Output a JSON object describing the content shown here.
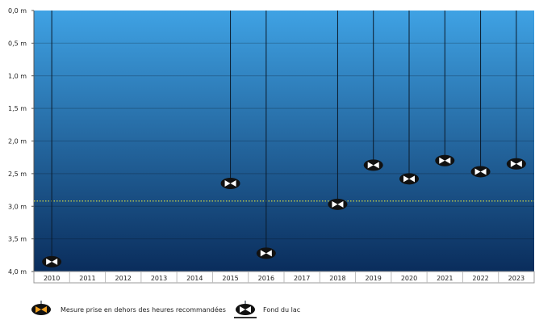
{
  "chart_data": {
    "type": "scatter",
    "title": "",
    "xlabel": "",
    "ylabel": "",
    "y_unit": "m",
    "y_axis_inverted": true,
    "ylim": [
      0,
      4
    ],
    "yticks": [
      0.0,
      0.5,
      1.0,
      1.5,
      2.0,
      2.5,
      3.0,
      3.5,
      4.0
    ],
    "ytick_labels": [
      "0,0 m",
      "0,5 m",
      "1,0 m",
      "1,5 m",
      "2,0 m",
      "2,5 m",
      "3,0 m",
      "3,5 m",
      "4,0 m"
    ],
    "categories": [
      "2010",
      "2011",
      "2012",
      "2013",
      "2014",
      "2015",
      "2016",
      "2017",
      "2018",
      "2019",
      "2020",
      "2021",
      "2022",
      "2023"
    ],
    "series": [
      {
        "name": "",
        "values": [
          3.85,
          null,
          null,
          null,
          null,
          2.65,
          3.72,
          null,
          2.97,
          2.37,
          2.58,
          2.3,
          2.47,
          2.35
        ]
      }
    ],
    "reference_line": {
      "value": 2.92,
      "color": "#e8e840",
      "style": "dotted"
    },
    "grid": true,
    "legend_position": "bottom-left",
    "legend": [
      {
        "label": "Mesure prise en dehors des heures recommandées",
        "marker": "orange-disk-icon"
      },
      {
        "label": "Fond du lac",
        "marker": "lake-bottom-icon"
      }
    ]
  },
  "colors": {
    "water_top": "#3fa2e4",
    "water_bottom": "#0a2d5c",
    "disk_dark": "#111111",
    "disk_light": "#ffffff",
    "disk_orange": "#f0a020",
    "cord": "#0a1a2a"
  }
}
